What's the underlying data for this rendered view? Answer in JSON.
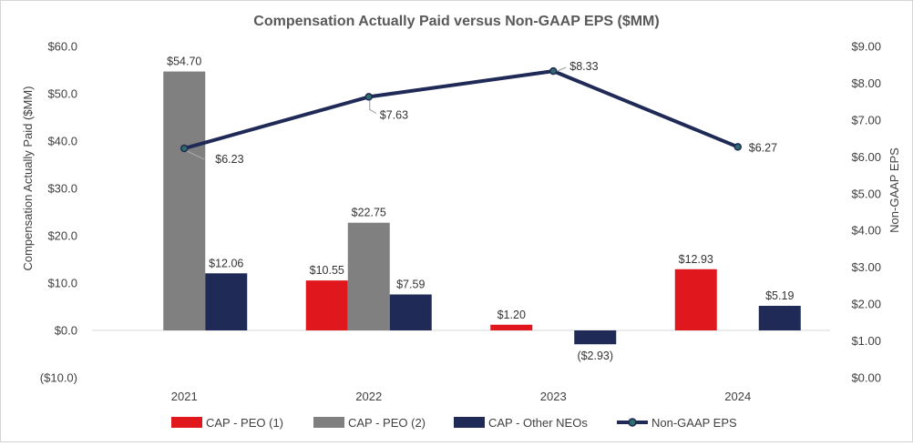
{
  "chart_data": {
    "type": "bar",
    "title": "Compensation Actually Paid versus Non-GAAP EPS ($MM)",
    "categories": [
      "2021",
      "2022",
      "2023",
      "2024"
    ],
    "y_left_label": "Compensation Actually Paid ($MM)",
    "y_right_label": "Non-GAAP EPS",
    "y_left_lim": [
      -10,
      60
    ],
    "y_right_lim": [
      0,
      9
    ],
    "y_left_ticks": [
      "$60.0",
      "$50.0",
      "$40.0",
      "$30.0",
      "$20.0",
      "$10.0",
      "$0.0",
      "($10.0)"
    ],
    "y_right_ticks": [
      "$9.00",
      "$8.00",
      "$7.00",
      "$6.00",
      "$5.00",
      "$4.00",
      "$3.00",
      "$2.00",
      "$1.00",
      "$0.00"
    ],
    "series": [
      {
        "name": "CAP - PEO (1)",
        "kind": "bar",
        "color": "#e0171c",
        "values": [
          null,
          10.55,
          1.2,
          12.93
        ],
        "labels": [
          "",
          "$10.55",
          "$1.20",
          "$12.93"
        ]
      },
      {
        "name": "CAP - PEO (2)",
        "kind": "bar",
        "color": "#808080",
        "values": [
          54.7,
          22.75,
          null,
          null
        ],
        "labels": [
          "$54.70",
          "$22.75",
          "",
          ""
        ]
      },
      {
        "name": "CAP - Other NEOs",
        "kind": "bar",
        "color": "#1f2a56",
        "values": [
          12.06,
          7.59,
          -2.93,
          5.19
        ],
        "labels": [
          "$12.06",
          "$7.59",
          "($2.93)",
          "$5.19"
        ]
      },
      {
        "name": "Non-GAAP EPS",
        "kind": "line",
        "axis": "right",
        "color": "#1f2a56",
        "marker_color": "#2e6b6b",
        "values": [
          6.23,
          7.63,
          8.33,
          6.27
        ],
        "labels": [
          "$6.23",
          "$7.63",
          "$8.33",
          "$6.27"
        ]
      }
    ],
    "legend": [
      "CAP - PEO (1)",
      "CAP - PEO (2)",
      "CAP - Other NEOs",
      "Non-GAAP EPS"
    ],
    "legend_position": "bottom",
    "grid": false
  }
}
